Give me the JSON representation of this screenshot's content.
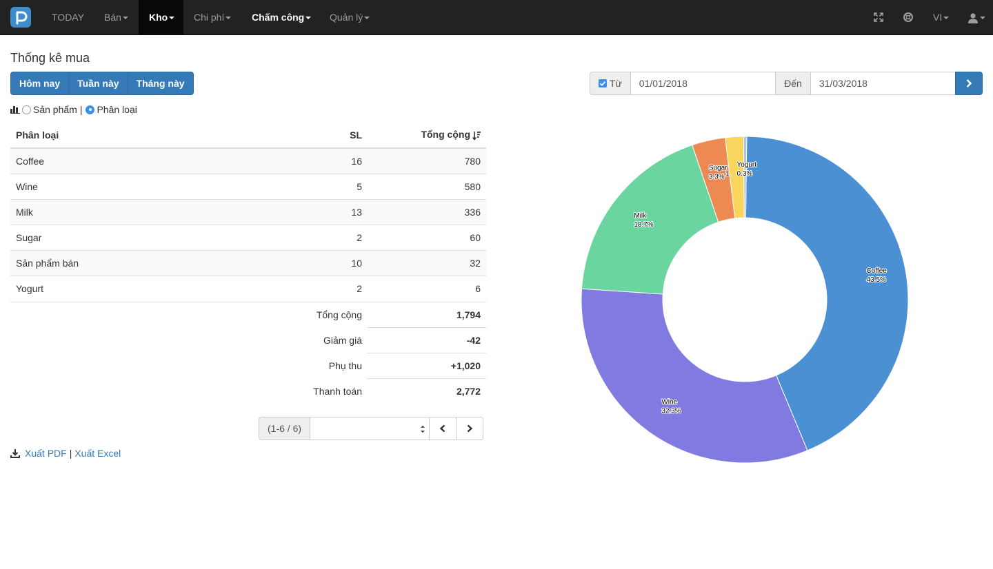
{
  "nav": {
    "items": [
      {
        "label": "TODAY",
        "caret": false
      },
      {
        "label": "Bán",
        "caret": true
      },
      {
        "label": "Kho",
        "caret": true
      },
      {
        "label": "Chi phí",
        "caret": true
      },
      {
        "label": "Chấm công",
        "caret": true
      },
      {
        "label": "Quản lý",
        "caret": true
      }
    ],
    "lang": "VI",
    "icons": [
      "fullscreen-icon",
      "support-icon",
      "user-icon"
    ]
  },
  "page": {
    "title": "Thống kê mua",
    "quick_ranges": [
      "Hôm nay",
      "Tuần này",
      "Tháng này"
    ],
    "view_toggle": {
      "product": "Sản phẩm",
      "separator": "|",
      "category": "Phân loại",
      "selected": "category"
    }
  },
  "date_range": {
    "from_label": "Từ",
    "from_checked": true,
    "from_value": "01/01/2018",
    "to_label": "Đến",
    "to_value": "31/03/2018"
  },
  "table": {
    "headers": {
      "category": "Phân loại",
      "qty": "SL",
      "total": "Tổng cộng"
    },
    "rows": [
      {
        "category": "Coffee",
        "qty": "16",
        "total": "780"
      },
      {
        "category": "Wine",
        "qty": "5",
        "total": "580"
      },
      {
        "category": "Milk",
        "qty": "13",
        "total": "336"
      },
      {
        "category": "Sugar",
        "qty": "2",
        "total": "60"
      },
      {
        "category": "Sản phẩm bán",
        "qty": "10",
        "total": "32"
      },
      {
        "category": "Yogurt",
        "qty": "2",
        "total": "6"
      }
    ],
    "summary": [
      {
        "label": "Tổng cộng",
        "value": "1,794"
      },
      {
        "label": "Giảm giá",
        "value": "-42"
      },
      {
        "label": "Phụ thu",
        "value": "+1,020"
      },
      {
        "label": "Thanh toán",
        "value": "2,772"
      }
    ]
  },
  "pagination": {
    "info": "(1-6 / 6)",
    "page_select_value": ""
  },
  "export": {
    "pdf": "Xuất PDF",
    "separator": "|",
    "excel": "Xuất Excel"
  },
  "colors": {
    "primary": "#337ab7",
    "navbar": "#222222"
  },
  "chart_data": {
    "type": "pie",
    "donut": true,
    "slices": [
      {
        "label": "Coffee",
        "percent_label": "43.5%",
        "value": 43.5,
        "color": "#4a90d2"
      },
      {
        "label": "Wine",
        "percent_label": "32.3%",
        "value": 32.3,
        "color": "#817be1"
      },
      {
        "label": "Milk",
        "percent_label": "18.7%",
        "value": 18.7,
        "color": "#6ad59e"
      },
      {
        "label": "Sugar",
        "percent_label": "3.3%",
        "value": 3.3,
        "color": "#ed8a54"
      },
      {
        "label": "",
        "percent_label": "1.",
        "value": 1.8,
        "color": "#f8d55c"
      },
      {
        "label": "Yogurt",
        "percent_label": "0.3%",
        "value": 0.3,
        "color": "#a9c4e6"
      }
    ]
  }
}
